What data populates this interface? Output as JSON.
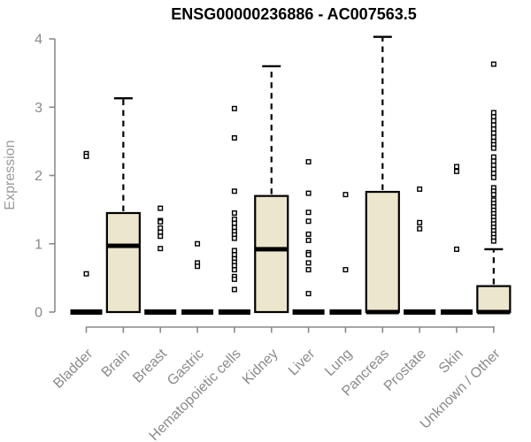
{
  "page": {
    "background": "#ffffff"
  },
  "chart_data": {
    "type": "boxplot",
    "title": "ENSG00000236886 - AC007563.5",
    "ylabel": "Expression",
    "xlabel": "",
    "ylim": [
      0,
      4
    ],
    "yticks": [
      0,
      1,
      2,
      3,
      4
    ],
    "grid": false,
    "legend": "none",
    "colors": {
      "box_fill": "#ece6cd",
      "box_stroke": "#000000",
      "median": "#000000",
      "outlier_stroke": "#000000",
      "outlier_fill": "#ffffff",
      "axis": "#8a8a8a",
      "tick_label": "#8a8a8a",
      "axis_title": "#9a9a9a",
      "title": "#000000"
    },
    "categories": [
      "Bladder",
      "Brain",
      "Breast",
      "Gastric",
      "Hematopoietic cells",
      "Kidney",
      "Liver",
      "Lung",
      "Pancreas",
      "Prostate",
      "Skin",
      "Unknown / Other"
    ],
    "series": [
      {
        "category": "Bladder",
        "q1": 0,
        "median": 0,
        "q3": 0,
        "whisker_low": 0,
        "whisker_high": 0,
        "outliers": [
          2.32,
          2.28,
          0.56
        ]
      },
      {
        "category": "Brain",
        "q1": 0,
        "median": 0.97,
        "q3": 1.45,
        "whisker_low": 0,
        "whisker_high": 3.13,
        "outliers": []
      },
      {
        "category": "Breast",
        "q1": 0,
        "median": 0,
        "q3": 0,
        "whisker_low": 0,
        "whisker_high": 0,
        "outliers": [
          1.52,
          1.34,
          1.32,
          1.23,
          1.17,
          1.11,
          0.93
        ]
      },
      {
        "category": "Gastric",
        "q1": 0,
        "median": 0,
        "q3": 0,
        "whisker_low": 0,
        "whisker_high": 0,
        "outliers": [
          1.0,
          0.72,
          0.67
        ]
      },
      {
        "category": "Hematopoietic cells",
        "q1": 0,
        "median": 0,
        "q3": 0,
        "whisker_low": 0,
        "whisker_high": 0,
        "outliers": [
          2.98,
          2.55,
          1.77,
          1.45,
          1.36,
          1.3,
          1.24,
          1.18,
          1.13,
          1.08,
          0.9,
          0.84,
          0.78,
          0.73,
          0.68,
          0.62,
          0.52,
          0.48,
          0.33
        ]
      },
      {
        "category": "Kidney",
        "q1": 0,
        "median": 0.92,
        "q3": 1.7,
        "whisker_low": 0,
        "whisker_high": 3.6,
        "outliers": []
      },
      {
        "category": "Liver",
        "q1": 0,
        "median": 0,
        "q3": 0,
        "whisker_low": 0,
        "whisker_high": 0,
        "outliers": [
          2.2,
          1.74,
          1.46,
          1.33,
          1.14,
          1.05,
          0.87,
          0.84,
          0.72,
          0.62,
          0.27
        ]
      },
      {
        "category": "Lung",
        "q1": 0,
        "median": 0,
        "q3": 0,
        "whisker_low": 0,
        "whisker_high": 0,
        "outliers": [
          1.72,
          0.62
        ]
      },
      {
        "category": "Pancreas",
        "q1": 0,
        "median": 0,
        "q3": 1.76,
        "whisker_low": 0,
        "whisker_high": 4.03,
        "outliers": []
      },
      {
        "category": "Prostate",
        "q1": 0,
        "median": 0,
        "q3": 0,
        "whisker_low": 0,
        "whisker_high": 0,
        "outliers": [
          1.8,
          1.31,
          1.22
        ]
      },
      {
        "category": "Skin",
        "q1": 0,
        "median": 0,
        "q3": 0,
        "whisker_low": 0,
        "whisker_high": 0,
        "outliers": [
          2.13,
          2.06,
          0.92
        ]
      },
      {
        "category": "Unknown / Other",
        "q1": 0,
        "median": 0,
        "q3": 0.38,
        "whisker_low": 0,
        "whisker_high": 0.92,
        "outliers": [
          3.63,
          2.92,
          2.86,
          2.8,
          2.74,
          2.68,
          2.62,
          2.56,
          2.5,
          2.45,
          2.4,
          2.27,
          2.21,
          2.15,
          2.09,
          2.03,
          1.97,
          1.82,
          1.77,
          1.72,
          1.64,
          1.59,
          1.54,
          1.49,
          1.44,
          1.39,
          1.34,
          1.29,
          1.24,
          1.19,
          1.14,
          1.09,
          1.04
        ]
      }
    ]
  }
}
